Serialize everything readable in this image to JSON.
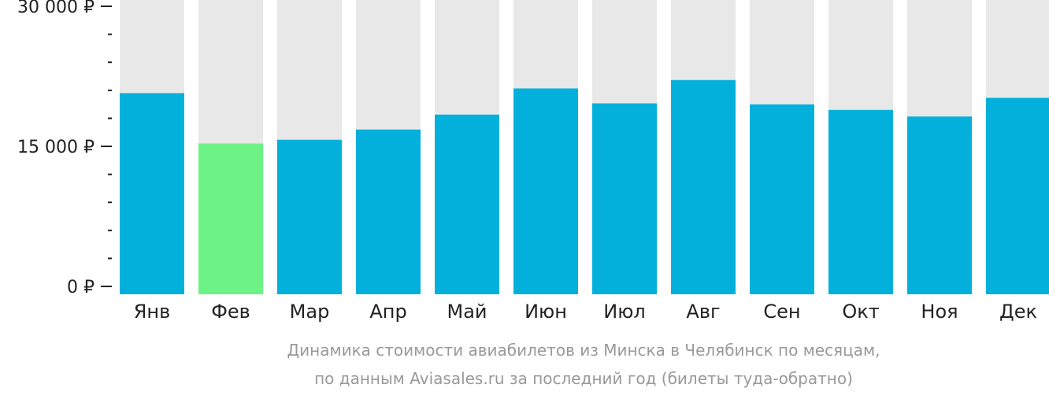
{
  "chart_data": {
    "type": "bar",
    "categories": [
      "Янв",
      "Фев",
      "Мар",
      "Апр",
      "Май",
      "Июн",
      "Июл",
      "Авг",
      "Сен",
      "Окт",
      "Ноя",
      "Дек"
    ],
    "values": [
      20700,
      15300,
      15700,
      16800,
      18400,
      21200,
      19600,
      22100,
      19500,
      18900,
      18200,
      20200
    ],
    "ylim": [
      0,
      30000
    ],
    "yticks": [
      {
        "value": 0,
        "label": "0 ₽"
      },
      {
        "value": 15000,
        "label": "15 000 ₽"
      },
      {
        "value": 30000,
        "label": "30 000 ₽"
      }
    ],
    "minor_tick_step": 3000,
    "highlight_index": 1,
    "colors": {
      "bar": "#03b0dc",
      "highlight": "#6cf285",
      "background_bar": "#e8e8e8",
      "axis": "#222222"
    },
    "caption": [
      "Динамика стоимости авиабилетов из Минска в Челябинск по месяцам,",
      "по данным Aviasales.ru за последний год (билеты туда-обратно)"
    ],
    "grid": false,
    "legend": "none"
  }
}
